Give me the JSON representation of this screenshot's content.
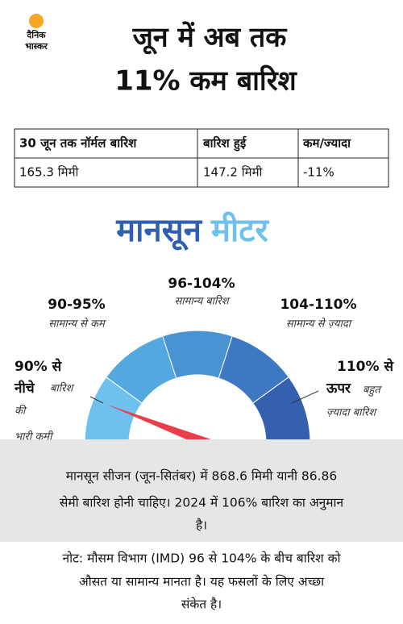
{
  "logo": {
    "line1": "दैनिक",
    "line2": "भास्कर"
  },
  "title": {
    "line1": "जून में अब तक",
    "line2": "11% कम बारिश"
  },
  "table": {
    "header": [
      "30 जून तक नॉर्मल बारिश",
      "बारिश हुई",
      "कम/ज्यादा"
    ],
    "rows": [
      [
        "165.3 मिमी",
        "147.2 मिमी",
        "-11%"
      ]
    ]
  },
  "meter_title": {
    "part1": "मानसून",
    "part2": "मीटर"
  },
  "segments": [
    {
      "range_lines": [
        "90% से",
        "नीचे"
      ],
      "description_lines": [
        "बारिश",
        "की",
        "भारी कमी"
      ],
      "color": "#6ec0ee"
    },
    {
      "range_lines": [
        "90-95%"
      ],
      "description_lines": [
        "सामान्य से कम"
      ],
      "color": "#54a8e0"
    },
    {
      "range_lines": [
        "96-104%"
      ],
      "description_lines": [
        "सामान्य बारिश"
      ],
      "color": "#4a93d3"
    },
    {
      "range_lines": [
        "104-110%"
      ],
      "description_lines": [
        "सामान्य से ज़्यादा"
      ],
      "color": "#3f78c2"
    },
    {
      "range_lines": [
        "110% से",
        "ऊपर"
      ],
      "description_lines": [
        "बहुत",
        "ज़्यादा बारिश"
      ],
      "color": "#3560b0"
    }
  ],
  "info": [
    "मानसून सीजन (जून-सितंबर) में 868.6 मिमी यानी 86.86",
    "सेमी बारिश होनी चाहिए। 2024 में 106% बारिश का अनुमान",
    "है।"
  ],
  "note": [
    "नोट: मौसम विभाग (IMD) 96 से 104% के बीच बारिश को",
    "औसत या सामान्य मानता है। यह फसलों के लिए अच्छा",
    "संकेत है।"
  ]
}
